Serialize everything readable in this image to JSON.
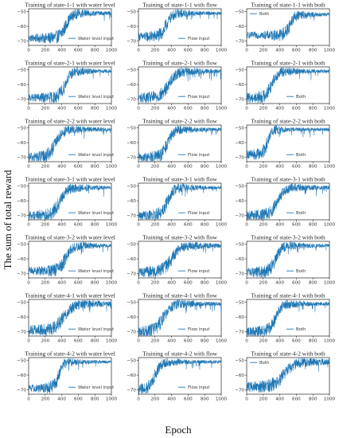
{
  "figure": {
    "xlabel": "Epoch",
    "ylabel": "The sum of total reward"
  },
  "style": {
    "line_color": "#1f77b4",
    "axis_color": "#000000"
  },
  "chart_data": [
    {
      "type": "line",
      "title": "Training of state-1-1 with water level",
      "legend": "Water level input",
      "legend_loc": "lower-right",
      "x_range": [
        0,
        1000
      ],
      "ylim": [
        -73,
        -48
      ],
      "xticks": [
        0,
        200,
        400,
        600,
        800,
        1000
      ],
      "yticks": [
        -50,
        -60,
        -70
      ],
      "start_value": -68,
      "end_value": -51,
      "rise_start": 300,
      "rise_end": 600
    },
    {
      "type": "line",
      "title": "Training of state-1-1 with flow",
      "legend": "Flow input",
      "legend_loc": "lower-right",
      "x_range": [
        0,
        1000
      ],
      "ylim": [
        -73,
        -48
      ],
      "xticks": [
        0,
        200,
        400,
        600,
        800,
        1000
      ],
      "yticks": [
        -50,
        -60,
        -70
      ],
      "start_value": -67,
      "end_value": -51,
      "rise_start": 200,
      "rise_end": 480
    },
    {
      "type": "line",
      "title": "Training of state-1-1 with both",
      "legend": "Both",
      "legend_loc": "upper-left",
      "x_range": [
        0,
        1000
      ],
      "ylim": [
        -73,
        -48
      ],
      "xticks": [
        0,
        200,
        400,
        600,
        800,
        1000
      ],
      "yticks": [
        -50,
        -60,
        -70
      ],
      "start_value": -66,
      "end_value": -52,
      "rise_start": 400,
      "rise_end": 640
    },
    {
      "type": "line",
      "title": "Training of state-2-1 with water level",
      "legend": "Water level input",
      "legend_loc": "lower-right",
      "x_range": [
        0,
        1000
      ],
      "ylim": [
        -73,
        -48
      ],
      "xticks": [
        0,
        200,
        400,
        600,
        800,
        1000
      ],
      "yticks": [
        -50,
        -60,
        -70
      ],
      "start_value": -69,
      "end_value": -51,
      "rise_start": 300,
      "rise_end": 580
    },
    {
      "type": "line",
      "title": "Training of state-2-1 with flow",
      "legend": "Flow input",
      "legend_loc": "lower-right",
      "x_range": [
        0,
        1000
      ],
      "ylim": [
        -73,
        -48
      ],
      "xticks": [
        0,
        200,
        400,
        600,
        800,
        1000
      ],
      "yticks": [
        -50,
        -60,
        -70
      ],
      "start_value": -69,
      "end_value": -51,
      "rise_start": 180,
      "rise_end": 550
    },
    {
      "type": "line",
      "title": "Training of state-2-1 with both",
      "legend": "Both",
      "legend_loc": "lower-right",
      "x_range": [
        0,
        1000
      ],
      "ylim": [
        -73,
        -48
      ],
      "xticks": [
        0,
        200,
        400,
        600,
        800,
        1000
      ],
      "yticks": [
        -50,
        -60,
        -70
      ],
      "start_value": -69,
      "end_value": -51,
      "rise_start": 150,
      "rise_end": 450
    },
    {
      "type": "line",
      "title": "Training of state-2-2 with water level",
      "legend": "Water level input",
      "legend_loc": "lower-right",
      "x_range": [
        0,
        1000
      ],
      "ylim": [
        -73,
        -48
      ],
      "xticks": [
        0,
        200,
        400,
        600,
        800,
        1000
      ],
      "yticks": [
        -50,
        -60,
        -70
      ],
      "start_value": -70,
      "end_value": -51,
      "rise_start": 150,
      "rise_end": 500
    },
    {
      "type": "line",
      "title": "Training of state-2-2 with flow",
      "legend": "Flow input",
      "legend_loc": "lower-right",
      "x_range": [
        0,
        1000
      ],
      "ylim": [
        -73,
        -48
      ],
      "xticks": [
        0,
        200,
        400,
        600,
        800,
        1000
      ],
      "yticks": [
        -50,
        -60,
        -70
      ],
      "start_value": -70,
      "end_value": -51,
      "rise_start": 200,
      "rise_end": 500
    },
    {
      "type": "line",
      "title": "Training of state-2-2 with both",
      "legend": "Both",
      "legend_loc": "lower-right",
      "x_range": [
        0,
        1000
      ],
      "ylim": [
        -73,
        -48
      ],
      "xticks": [
        0,
        200,
        400,
        600,
        800,
        1000
      ],
      "yticks": [
        -50,
        -60,
        -70
      ],
      "start_value": -68,
      "end_value": -51,
      "rise_start": 150,
      "rise_end": 350
    },
    {
      "type": "line",
      "title": "Training of state-3-1 with water level",
      "legend": "Water level input",
      "legend_loc": "lower-right",
      "x_range": [
        0,
        1000
      ],
      "ylim": [
        -73,
        -48
      ],
      "xticks": [
        0,
        200,
        400,
        600,
        800,
        1000
      ],
      "yticks": [
        -50,
        -60,
        -70
      ],
      "start_value": -70,
      "end_value": -51,
      "rise_start": 200,
      "rise_end": 550
    },
    {
      "type": "line",
      "title": "Training of state-3-1 with flow",
      "legend": "Flow input",
      "legend_loc": "lower-right",
      "x_range": [
        0,
        1000
      ],
      "ylim": [
        -73,
        -48
      ],
      "xticks": [
        0,
        200,
        400,
        600,
        800,
        1000
      ],
      "yticks": [
        -50,
        -60,
        -70
      ],
      "start_value": -70,
      "end_value": -51,
      "rise_start": 200,
      "rise_end": 500
    },
    {
      "type": "line",
      "title": "Training of state-3-1 with both",
      "legend": "Both",
      "legend_loc": "lower-right",
      "x_range": [
        0,
        1000
      ],
      "ylim": [
        -73,
        -48
      ],
      "xticks": [
        0,
        200,
        400,
        600,
        800,
        1000
      ],
      "yticks": [
        -50,
        -60,
        -70
      ],
      "start_value": -70,
      "end_value": -51,
      "rise_start": 200,
      "rise_end": 550
    },
    {
      "type": "line",
      "title": "Training of state-3-2 with water level",
      "legend": "Water level input",
      "legend_loc": "lower-right",
      "x_range": [
        0,
        1000
      ],
      "ylim": [
        -73,
        -48
      ],
      "xticks": [
        0,
        200,
        400,
        600,
        800,
        1000
      ],
      "yticks": [
        -50,
        -60,
        -70
      ],
      "start_value": -68,
      "end_value": -51,
      "rise_start": 300,
      "rise_end": 600
    },
    {
      "type": "line",
      "title": "Training of state-3-2 with flow",
      "legend": "Flow input",
      "legend_loc": "lower-right",
      "x_range": [
        0,
        1000
      ],
      "ylim": [
        -73,
        -48
      ],
      "xticks": [
        0,
        200,
        400,
        600,
        800,
        1000
      ],
      "yticks": [
        -50,
        -60,
        -70
      ],
      "start_value": -69,
      "end_value": -51,
      "rise_start": 200,
      "rise_end": 600
    },
    {
      "type": "line",
      "title": "Training of state-3-2 with both",
      "legend": "Both",
      "legend_loc": "lower-right",
      "x_range": [
        0,
        1000
      ],
      "ylim": [
        -73,
        -48
      ],
      "xticks": [
        0,
        200,
        400,
        600,
        800,
        1000
      ],
      "yticks": [
        -50,
        -60,
        -70
      ],
      "start_value": -69,
      "end_value": -51,
      "rise_start": 200,
      "rise_end": 500
    },
    {
      "type": "line",
      "title": "Training of state-4-1 with water level",
      "legend": "Water level input",
      "legend_loc": "lower-right",
      "x_range": [
        0,
        1000
      ],
      "ylim": [
        -73,
        -48
      ],
      "xticks": [
        0,
        200,
        400,
        600,
        800,
        1000
      ],
      "yticks": [
        -50,
        -60,
        -70
      ],
      "start_value": -69,
      "end_value": -51,
      "rise_start": 200,
      "rise_end": 650
    },
    {
      "type": "line",
      "title": "Training of state-4-1 with flow",
      "legend": "Flow input",
      "legend_loc": "lower-right",
      "x_range": [
        0,
        1000
      ],
      "ylim": [
        -73,
        -48
      ],
      "xticks": [
        0,
        200,
        400,
        600,
        800,
        1000
      ],
      "yticks": [
        -50,
        -60,
        -70
      ],
      "start_value": -70,
      "end_value": -51,
      "rise_start": 100,
      "rise_end": 500
    },
    {
      "type": "line",
      "title": "Training of state-4-1 with both",
      "legend": "Both",
      "legend_loc": "lower-right",
      "x_range": [
        0,
        1000
      ],
      "ylim": [
        -73,
        -48
      ],
      "xticks": [
        0,
        200,
        400,
        600,
        800,
        1000
      ],
      "yticks": [
        -50,
        -60,
        -70
      ],
      "start_value": -70,
      "end_value": -51,
      "rise_start": 200,
      "rise_end": 500
    },
    {
      "type": "line",
      "title": "Training of state-4-2 with water level",
      "legend": "Water level input",
      "legend_loc": "lower-right",
      "x_range": [
        0,
        1000
      ],
      "ylim": [
        -73,
        -48
      ],
      "xticks": [
        0,
        200,
        400,
        600,
        800,
        1000
      ],
      "yticks": [
        -50,
        -60,
        -70
      ],
      "start_value": -69,
      "end_value": -51,
      "rise_start": 250,
      "rise_end": 480
    },
    {
      "type": "line",
      "title": "Training of state-4-2 with flow",
      "legend": "Flow input",
      "legend_loc": "lower-right",
      "x_range": [
        0,
        1000
      ],
      "ylim": [
        -73,
        -48
      ],
      "xticks": [
        0,
        200,
        400,
        600,
        800,
        1000
      ],
      "yticks": [
        -50,
        -60,
        -70
      ],
      "start_value": -70,
      "end_value": -51,
      "rise_start": 50,
      "rise_end": 350
    },
    {
      "type": "line",
      "title": "Training of state-4-2 with both",
      "legend": "Both",
      "legend_loc": "upper-left",
      "x_range": [
        0,
        1000
      ],
      "ylim": [
        -73,
        -48
      ],
      "xticks": [
        0,
        200,
        400,
        600,
        800,
        1000
      ],
      "yticks": [
        -50,
        -60,
        -70
      ],
      "start_value": -68,
      "end_value": -51,
      "rise_start": 200,
      "rise_end": 700
    }
  ]
}
